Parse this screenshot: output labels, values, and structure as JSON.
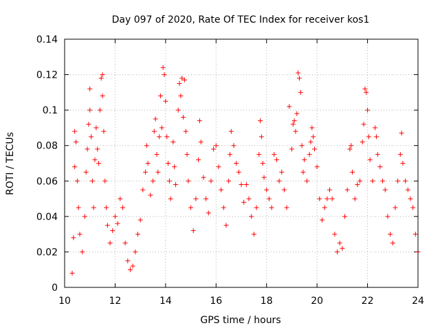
{
  "chart_data": {
    "type": "scatter",
    "title": "Day 097 of 2020, Rate Of TEC Index for receiver kos1",
    "xlabel": "GPS time / hours",
    "ylabel": "ROTI / TECUs",
    "xlim": [
      10,
      24
    ],
    "ylim": [
      0,
      0.14
    ],
    "xticks": [
      "10",
      "12",
      "14",
      "16",
      "18",
      "20",
      "22",
      "24"
    ],
    "yticks": [
      "0",
      "0.02",
      "0.04",
      "0.06",
      "0.08",
      "0.1",
      "0.12",
      "0.14"
    ],
    "grid": true,
    "marker": "+",
    "color": "#ff0000",
    "series": [
      {
        "points": [
          [
            10.3,
            0.008
          ],
          [
            10.35,
            0.028
          ],
          [
            10.4,
            0.068
          ],
          [
            10.4,
            0.088
          ],
          [
            10.45,
            0.082
          ],
          [
            10.5,
            0.06
          ],
          [
            10.55,
            0.045
          ],
          [
            10.6,
            0.03
          ],
          [
            10.7,
            0.02
          ],
          [
            10.8,
            0.04
          ],
          [
            10.85,
            0.065
          ],
          [
            10.9,
            0.078
          ],
          [
            10.95,
            0.092
          ],
          [
            11.0,
            0.112
          ],
          [
            11.0,
            0.1
          ],
          [
            11.05,
            0.085
          ],
          [
            11.1,
            0.06
          ],
          [
            11.15,
            0.045
          ],
          [
            11.2,
            0.072
          ],
          [
            11.25,
            0.09
          ],
          [
            11.3,
            0.078
          ],
          [
            11.35,
            0.07
          ],
          [
            11.4,
            0.1
          ],
          [
            11.45,
            0.118
          ],
          [
            11.5,
            0.12
          ],
          [
            11.5,
            0.108
          ],
          [
            11.55,
            0.088
          ],
          [
            11.6,
            0.06
          ],
          [
            11.65,
            0.045
          ],
          [
            11.7,
            0.035
          ],
          [
            11.8,
            0.025
          ],
          [
            11.9,
            0.032
          ],
          [
            12.0,
            0.04
          ],
          [
            12.1,
            0.036
          ],
          [
            12.2,
            0.05
          ],
          [
            12.3,
            0.045
          ],
          [
            12.4,
            0.025
          ],
          [
            12.5,
            0.015
          ],
          [
            12.6,
            0.01
          ],
          [
            12.7,
            0.012
          ],
          [
            12.8,
            0.02
          ],
          [
            12.9,
            0.03
          ],
          [
            13.0,
            0.038
          ],
          [
            13.1,
            0.055
          ],
          [
            13.2,
            0.065
          ],
          [
            13.25,
            0.08
          ],
          [
            13.3,
            0.07
          ],
          [
            13.4,
            0.052
          ],
          [
            13.5,
            0.06
          ],
          [
            13.55,
            0.088
          ],
          [
            13.6,
            0.095
          ],
          [
            13.65,
            0.075
          ],
          [
            13.7,
            0.065
          ],
          [
            13.75,
            0.085
          ],
          [
            13.8,
            0.108
          ],
          [
            13.85,
            0.09
          ],
          [
            13.9,
            0.124
          ],
          [
            13.95,
            0.12
          ],
          [
            14.0,
            0.105
          ],
          [
            14.05,
            0.085
          ],
          [
            14.1,
            0.07
          ],
          [
            14.15,
            0.06
          ],
          [
            14.2,
            0.05
          ],
          [
            14.3,
            0.082
          ],
          [
            14.35,
            0.068
          ],
          [
            14.4,
            0.058
          ],
          [
            14.5,
            0.1
          ],
          [
            14.55,
            0.115
          ],
          [
            14.6,
            0.108
          ],
          [
            14.65,
            0.118
          ],
          [
            14.7,
            0.096
          ],
          [
            14.75,
            0.117
          ],
          [
            14.8,
            0.088
          ],
          [
            14.85,
            0.075
          ],
          [
            14.9,
            0.06
          ],
          [
            15.0,
            0.045
          ],
          [
            15.1,
            0.032
          ],
          [
            15.2,
            0.05
          ],
          [
            15.3,
            0.072
          ],
          [
            15.35,
            0.094
          ],
          [
            15.4,
            0.082
          ],
          [
            15.5,
            0.062
          ],
          [
            15.6,
            0.05
          ],
          [
            15.7,
            0.042
          ],
          [
            15.8,
            0.06
          ],
          [
            15.9,
            0.078
          ],
          [
            16.0,
            0.08
          ],
          [
            16.1,
            0.068
          ],
          [
            16.2,
            0.055
          ],
          [
            16.3,
            0.045
          ],
          [
            16.4,
            0.035
          ],
          [
            16.5,
            0.06
          ],
          [
            16.55,
            0.075
          ],
          [
            16.6,
            0.088
          ],
          [
            16.7,
            0.08
          ],
          [
            16.8,
            0.07
          ],
          [
            16.9,
            0.065
          ],
          [
            17.0,
            0.058
          ],
          [
            17.1,
            0.048
          ],
          [
            17.2,
            0.058
          ],
          [
            17.3,
            0.05
          ],
          [
            17.4,
            0.04
          ],
          [
            17.5,
            0.03
          ],
          [
            17.6,
            0.045
          ],
          [
            17.7,
            0.075
          ],
          [
            17.75,
            0.094
          ],
          [
            17.8,
            0.085
          ],
          [
            17.85,
            0.07
          ],
          [
            17.9,
            0.062
          ],
          [
            18.0,
            0.055
          ],
          [
            18.1,
            0.05
          ],
          [
            18.2,
            0.045
          ],
          [
            18.3,
            0.075
          ],
          [
            18.4,
            0.072
          ],
          [
            18.5,
            0.06
          ],
          [
            18.6,
            0.065
          ],
          [
            18.7,
            0.055
          ],
          [
            18.8,
            0.045
          ],
          [
            18.9,
            0.102
          ],
          [
            19.0,
            0.078
          ],
          [
            19.05,
            0.092
          ],
          [
            19.1,
            0.094
          ],
          [
            19.15,
            0.088
          ],
          [
            19.2,
            0.098
          ],
          [
            19.25,
            0.121
          ],
          [
            19.3,
            0.118
          ],
          [
            19.35,
            0.11
          ],
          [
            19.4,
            0.08
          ],
          [
            19.45,
            0.065
          ],
          [
            19.5,
            0.072
          ],
          [
            19.6,
            0.06
          ],
          [
            19.7,
            0.075
          ],
          [
            19.75,
            0.082
          ],
          [
            19.8,
            0.09
          ],
          [
            19.85,
            0.085
          ],
          [
            19.9,
            0.078
          ],
          [
            20.0,
            0.068
          ],
          [
            20.1,
            0.05
          ],
          [
            20.2,
            0.038
          ],
          [
            20.3,
            0.045
          ],
          [
            20.4,
            0.05
          ],
          [
            20.5,
            0.055
          ],
          [
            20.6,
            0.05
          ],
          [
            20.7,
            0.03
          ],
          [
            20.8,
            0.02
          ],
          [
            20.9,
            0.025
          ],
          [
            21.0,
            0.022
          ],
          [
            21.1,
            0.04
          ],
          [
            21.2,
            0.055
          ],
          [
            21.3,
            0.078
          ],
          [
            21.35,
            0.08
          ],
          [
            21.4,
            0.065
          ],
          [
            21.5,
            0.05
          ],
          [
            21.6,
            0.058
          ],
          [
            21.7,
            0.06
          ],
          [
            21.8,
            0.082
          ],
          [
            21.85,
            0.092
          ],
          [
            21.9,
            0.112
          ],
          [
            21.95,
            0.11
          ],
          [
            22.0,
            0.1
          ],
          [
            22.05,
            0.085
          ],
          [
            22.1,
            0.072
          ],
          [
            22.2,
            0.06
          ],
          [
            22.3,
            0.09
          ],
          [
            22.35,
            0.085
          ],
          [
            22.4,
            0.075
          ],
          [
            22.5,
            0.068
          ],
          [
            22.6,
            0.06
          ],
          [
            22.7,
            0.055
          ],
          [
            22.8,
            0.04
          ],
          [
            22.9,
            0.03
          ],
          [
            23.0,
            0.025
          ],
          [
            23.1,
            0.045
          ],
          [
            23.2,
            0.06
          ],
          [
            23.3,
            0.075
          ],
          [
            23.35,
            0.087
          ],
          [
            23.4,
            0.07
          ],
          [
            23.5,
            0.06
          ],
          [
            23.6,
            0.055
          ],
          [
            23.7,
            0.05
          ],
          [
            23.8,
            0.045
          ],
          [
            23.9,
            0.03
          ],
          [
            24.0,
            0.02
          ]
        ]
      }
    ]
  }
}
